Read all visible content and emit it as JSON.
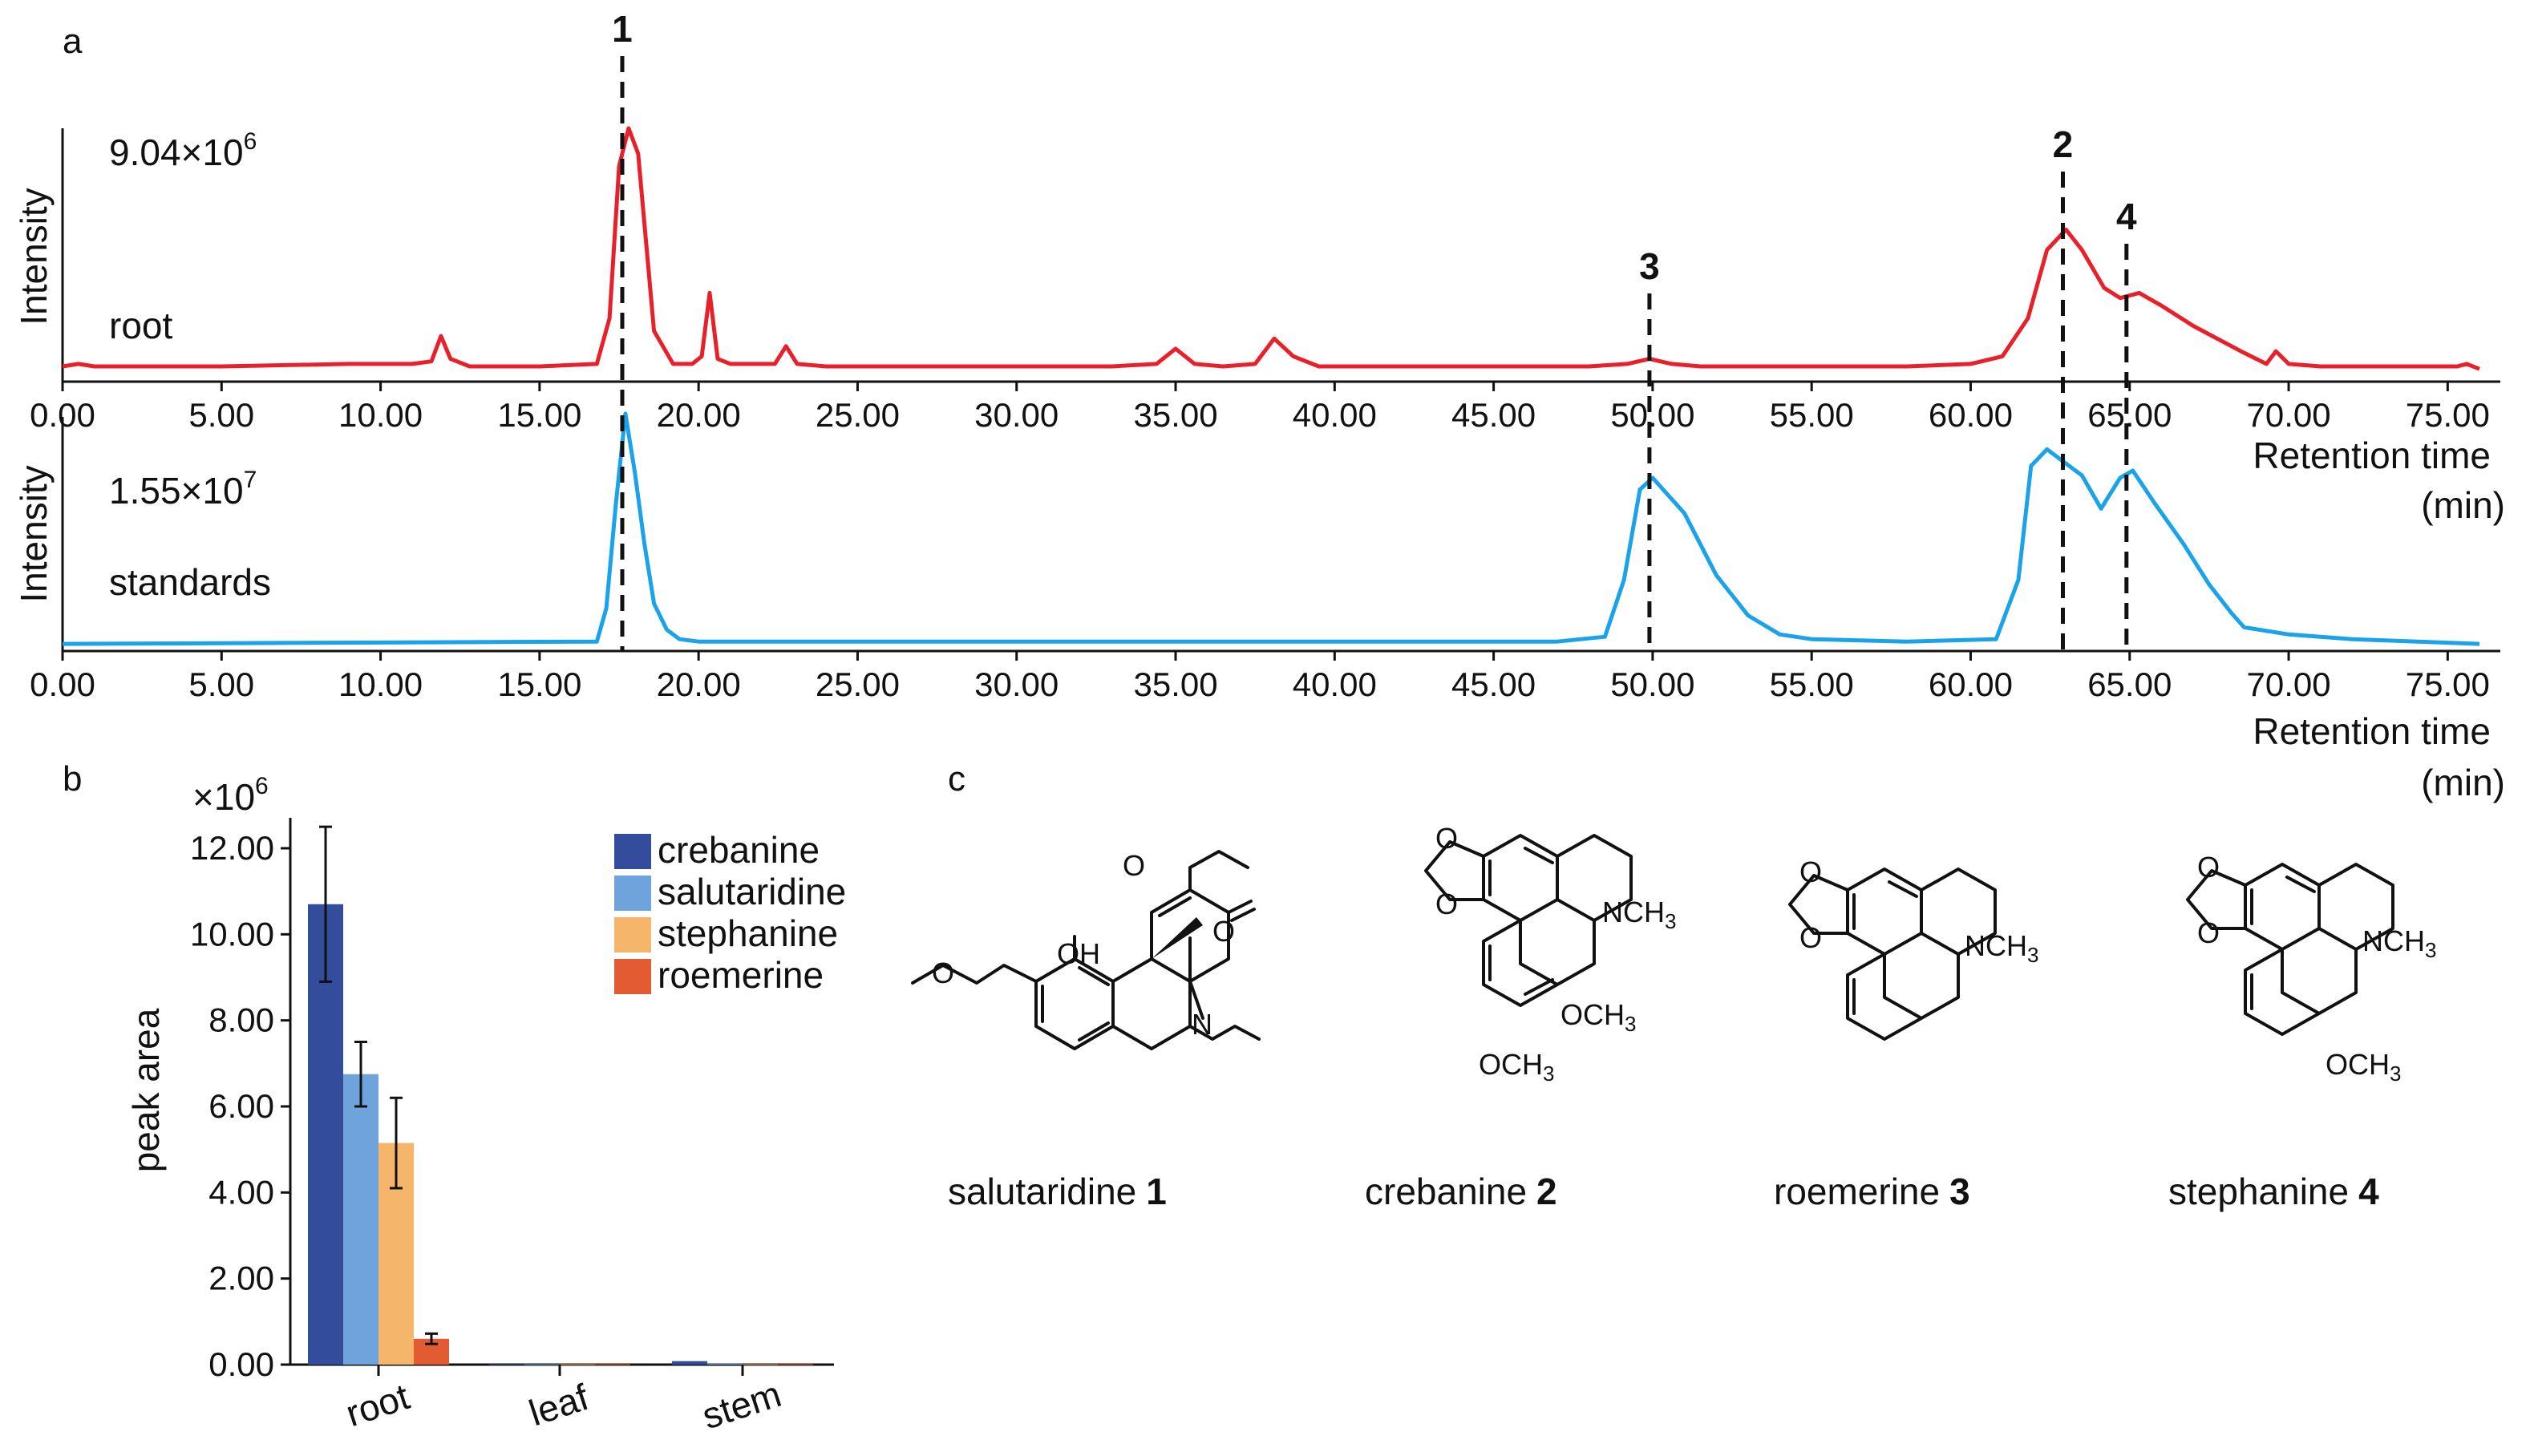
{
  "panels": {
    "a": "a",
    "b": "b",
    "c": "c"
  },
  "chromatogram": {
    "y_label": "Intensity",
    "x_label": "Retention time",
    "x_unit": "(min)",
    "x_ticks": [
      "0.00",
      "5.00",
      "10.00",
      "15.00",
      "20.00",
      "25.00",
      "30.00",
      "35.00",
      "40.00",
      "45.00",
      "50.00",
      "55.00",
      "60.00",
      "65.00",
      "70.00",
      "75.00"
    ],
    "root": {
      "label": "root",
      "scale_base": "9.04×10",
      "scale_exp": "6",
      "color": "#e8202a"
    },
    "standards": {
      "label": "standards",
      "scale_base": "1.55×10",
      "scale_exp": "7",
      "color": "#1aa3e8"
    },
    "peak_markers": [
      {
        "label": "1",
        "time": 17.6
      },
      {
        "label": "3",
        "time": 49.9
      },
      {
        "label": "2",
        "time": 62.9
      },
      {
        "label": "4",
        "time": 64.9
      }
    ]
  },
  "bar": {
    "ylabel": "peak area",
    "multiplier_base": "×10",
    "multiplier_exp": "6",
    "y_ticks": [
      "0.00",
      "2.00",
      "4.00",
      "6.00",
      "8.00",
      "10.00",
      "12.00"
    ]
  },
  "structures": {
    "salutaridine": {
      "name": "salutaridine",
      "num": "1"
    },
    "crebanine": {
      "name": "crebanine",
      "num": "2"
    },
    "roemerine": {
      "name": "roemerine",
      "num": "3"
    },
    "stephanine": {
      "name": "stephanine",
      "num": "4"
    },
    "atoms": {
      "O": "O",
      "OH": "OH",
      "N": "N",
      "NCH3": "NCH",
      "OCH3": "OCH",
      "sub3": "3"
    }
  },
  "chart_data": [
    {
      "type": "line",
      "title": "",
      "xlabel": "Retention time (min)",
      "ylabel": "Intensity",
      "xlim": [
        0,
        76
      ],
      "series": [
        {
          "name": "root",
          "max_intensity": 9040000,
          "x": [
            0,
            0.5,
            1,
            5,
            9,
            11,
            11.6,
            11.9,
            12.2,
            12.8,
            15,
            16.8,
            17.2,
            17.5,
            17.8,
            18.1,
            18.6,
            19.2,
            19.8,
            20.1,
            20.35,
            20.6,
            21,
            22.4,
            22.75,
            23.1,
            24,
            33,
            34.4,
            35,
            35.6,
            36.5,
            37.5,
            38.1,
            38.7,
            39.5,
            41,
            45,
            48,
            49.2,
            49.9,
            50.6,
            51.5,
            55,
            58,
            60,
            61,
            61.8,
            62.4,
            63,
            63.5,
            64.2,
            64.7,
            65.3,
            66,
            67,
            68.5,
            69.3,
            69.6,
            70,
            71,
            73,
            75.3,
            75.6,
            76
          ],
          "y": [
            0.06,
            0.07,
            0.06,
            0.06,
            0.07,
            0.07,
            0.08,
            0.18,
            0.09,
            0.06,
            0.06,
            0.07,
            0.25,
            0.85,
            1.0,
            0.9,
            0.2,
            0.07,
            0.07,
            0.1,
            0.35,
            0.09,
            0.07,
            0.07,
            0.14,
            0.07,
            0.06,
            0.06,
            0.07,
            0.13,
            0.07,
            0.06,
            0.07,
            0.17,
            0.1,
            0.06,
            0.06,
            0.06,
            0.06,
            0.07,
            0.09,
            0.07,
            0.06,
            0.06,
            0.06,
            0.07,
            0.1,
            0.25,
            0.52,
            0.6,
            0.52,
            0.37,
            0.33,
            0.35,
            0.3,
            0.22,
            0.12,
            0.07,
            0.12,
            0.07,
            0.06,
            0.06,
            0.06,
            0.07,
            0.05
          ]
        },
        {
          "name": "standards",
          "max_intensity": 15500000,
          "x": [
            0,
            16.8,
            17.1,
            17.4,
            17.7,
            18.0,
            18.3,
            18.6,
            19.0,
            19.4,
            20,
            25,
            47,
            48.5,
            49.1,
            49.6,
            50.0,
            51.0,
            52.0,
            53.0,
            54.0,
            55,
            58,
            60.8,
            61.5,
            61.9,
            62.4,
            62.9,
            63.5,
            64.1,
            64.7,
            65.1,
            65.8,
            66.7,
            67.5,
            68.2,
            68.6,
            70,
            72,
            76
          ],
          "y": [
            0.03,
            0.04,
            0.18,
            0.62,
            1.0,
            0.75,
            0.45,
            0.2,
            0.09,
            0.05,
            0.04,
            0.04,
            0.04,
            0.06,
            0.3,
            0.68,
            0.73,
            0.58,
            0.32,
            0.15,
            0.07,
            0.05,
            0.04,
            0.05,
            0.3,
            0.78,
            0.85,
            0.8,
            0.74,
            0.6,
            0.73,
            0.76,
            0.62,
            0.45,
            0.28,
            0.16,
            0.1,
            0.07,
            0.05,
            0.03
          ]
        }
      ]
    },
    {
      "type": "bar",
      "title": "",
      "xlabel": "",
      "ylabel": "peak area",
      "unit_multiplier": 1000000,
      "ylim": [
        0,
        12.5
      ],
      "categories": [
        "root",
        "leaf",
        "stem"
      ],
      "series": [
        {
          "name": "crebanine",
          "color": "#334c9b",
          "values": [
            10.7,
            0.01,
            0.08
          ],
          "errors": [
            1.8,
            0,
            0
          ]
        },
        {
          "name": "salutaridine",
          "color": "#6fa3dc",
          "values": [
            6.75,
            0.01,
            0.02
          ],
          "errors": [
            0.75,
            0,
            0
          ]
        },
        {
          "name": "stephanine",
          "color": "#f5b66b",
          "values": [
            5.15,
            0.01,
            0.01
          ],
          "errors": [
            1.05,
            0,
            0
          ]
        },
        {
          "name": "roemerine",
          "color": "#e35b32",
          "values": [
            0.6,
            0.01,
            0.01
          ],
          "errors": [
            0.12,
            0,
            0
          ]
        }
      ],
      "legend": "top-right"
    }
  ]
}
